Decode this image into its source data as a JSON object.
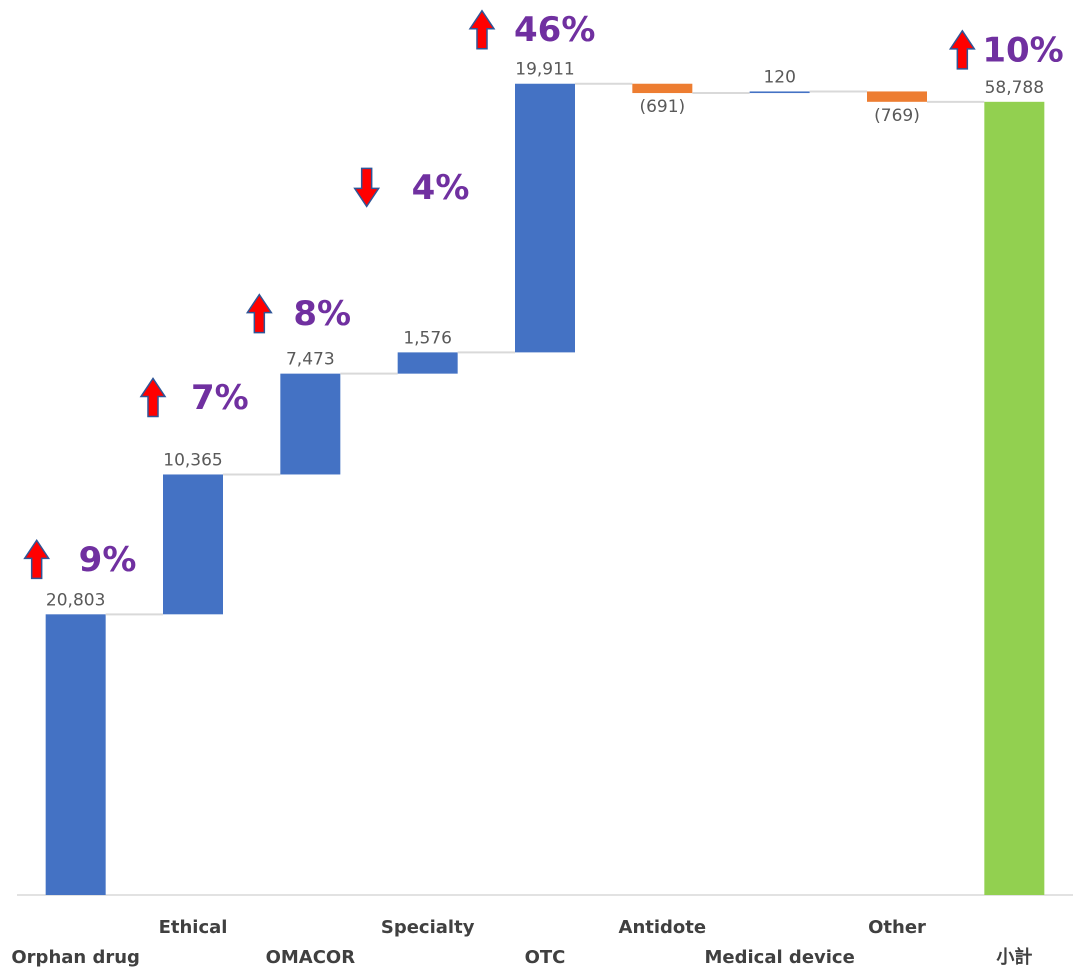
{
  "chart_data": {
    "type": "waterfall",
    "categories": [
      "Orphan drug",
      "Ethical",
      "OMACOR",
      "Specialty",
      "OTC",
      "Antidote",
      "Medical device",
      "Other",
      "小計"
    ],
    "values": [
      20803,
      10365,
      7473,
      1576,
      19911,
      -691,
      120,
      -769,
      58788
    ],
    "value_labels": [
      "20,803",
      "10,365",
      "7,473",
      "1,576",
      "19,911",
      "(691)",
      "120",
      "(769)",
      "58,788"
    ],
    "total_index": 8,
    "colors": {
      "increase": "#4472c4",
      "decrease": "#ed7d31",
      "total": "#92d050",
      "growth": "#7030a0",
      "arrow": "#ff0000",
      "arrow_outline": "#2f5597"
    },
    "ylim": [
      0,
      65000
    ],
    "growth": [
      {
        "index": 0,
        "value": 9,
        "label": "9%",
        "direction": "up"
      },
      {
        "index": 1,
        "value": 7,
        "label": "7%",
        "direction": "up"
      },
      {
        "index": 2,
        "value": 8,
        "label": "8%",
        "direction": "up"
      },
      {
        "index": 3,
        "value": 4,
        "label": "4%",
        "direction": "down"
      },
      {
        "index": 4,
        "value": 46,
        "label": "46%",
        "direction": "up"
      },
      {
        "index": 8,
        "value": 10,
        "label": "10%",
        "direction": "up"
      }
    ]
  }
}
